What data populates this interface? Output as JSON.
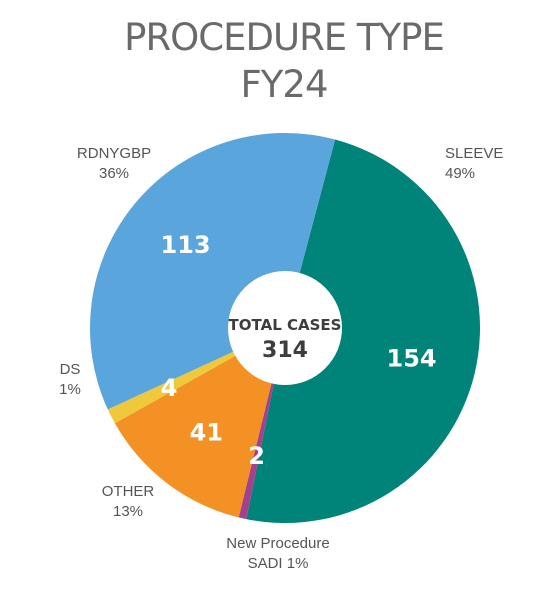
{
  "chart_data": {
    "type": "pie",
    "title": [
      "PROCEDURE TYPE",
      "FY24"
    ],
    "center": {
      "label": "TOTAL CASES",
      "value": "314"
    },
    "slices": [
      {
        "key": "sleeve",
        "value": 154,
        "value_label": "154",
        "label_lines": [
          "SLEEVE",
          "49%"
        ],
        "color": "#00847a"
      },
      {
        "key": "sadi",
        "value": 2,
        "value_label": "2",
        "label_lines": [
          "New Procedure",
          "SADI 1%"
        ],
        "color": "#a3418e"
      },
      {
        "key": "other",
        "value": 41,
        "value_label": "41",
        "label_lines": [
          "OTHER",
          "13%"
        ],
        "color": "#f39124"
      },
      {
        "key": "ds",
        "value": 4,
        "value_label": "4",
        "label_lines": [
          "DS",
          "1%"
        ],
        "color": "#f0c83c"
      },
      {
        "key": "rdnygbp",
        "value": 113,
        "value_label": "113",
        "label_lines": [
          "RDNYGBP",
          "36%"
        ],
        "color": "#5aa5dc"
      }
    ]
  }
}
